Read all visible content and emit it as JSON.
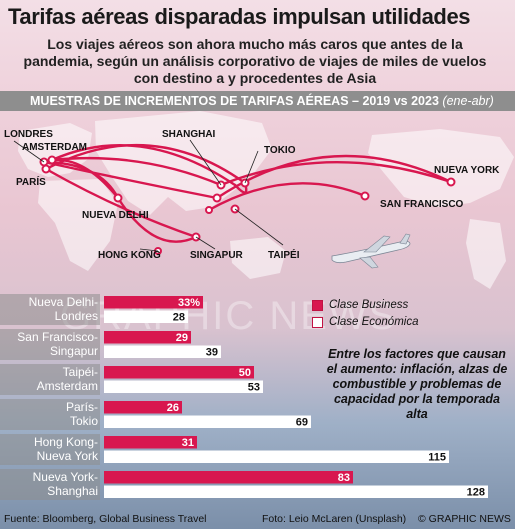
{
  "title": "Tarifas aéreas disparadas impulsan utilidades",
  "subtitle": "Los viajes aéreos son ahora mucho más caros que antes de la pandemia, según un análisis corporativo de viajes de miles de vuelos con destino a y procedentes de Asia",
  "banner": {
    "text": "MUESTRAS DE INCREMENTOS DE TARIFAS AÉREAS – 2019 vs 2023",
    "period": "(ene-abr)"
  },
  "map": {
    "cities": [
      "LONDRES",
      "AMSTERDAM",
      "PARÍS",
      "NUEVA DELHI",
      "SHANGHAI",
      "TOKIO",
      "HONG KONG",
      "SINGAPUR",
      "TAIPÉI",
      "NUEVA YORK",
      "SAN FRANCISCO"
    ]
  },
  "legend": {
    "business": "Clase Business",
    "economy": "Clase Económica"
  },
  "note": "Entre los factores que causan el aumento: inflación, alzas de combustible y problemas de capacidad por la temporada alta",
  "watermark": "GRAPHIC NEWS",
  "footer": {
    "source": "Fuente: Bloomberg, Global Business Travel",
    "photo": "Foto: Leio McLaren (Unsplash)",
    "credit": "© GRAPHIC NEWS"
  },
  "colors": {
    "business": "#d8174f",
    "economy": "#ffffff",
    "route": "#d8174f",
    "banner": "#8e8e8e"
  },
  "chart_data": {
    "type": "bar",
    "orientation": "horizontal",
    "unit": "%",
    "categories": [
      [
        "Nueva Delhi-",
        "Londres"
      ],
      [
        "San Francisco-",
        "Singapur"
      ],
      [
        "Taipéi-",
        "Amsterdam"
      ],
      [
        "París-",
        "Tokio"
      ],
      [
        "Hong Kong-",
        "Nueva York"
      ],
      [
        "Nueva York-",
        "Shanghai"
      ]
    ],
    "series": [
      {
        "name": "Clase Business",
        "values": [
          33,
          29,
          50,
          26,
          31,
          83
        ],
        "labels": [
          "33%",
          "29",
          "50",
          "26",
          "31",
          "83"
        ]
      },
      {
        "name": "Clase Económica",
        "values": [
          28,
          39,
          53,
          69,
          115,
          128
        ],
        "labels": [
          "28",
          "39",
          "53",
          "69",
          "115",
          "128"
        ]
      }
    ]
  }
}
